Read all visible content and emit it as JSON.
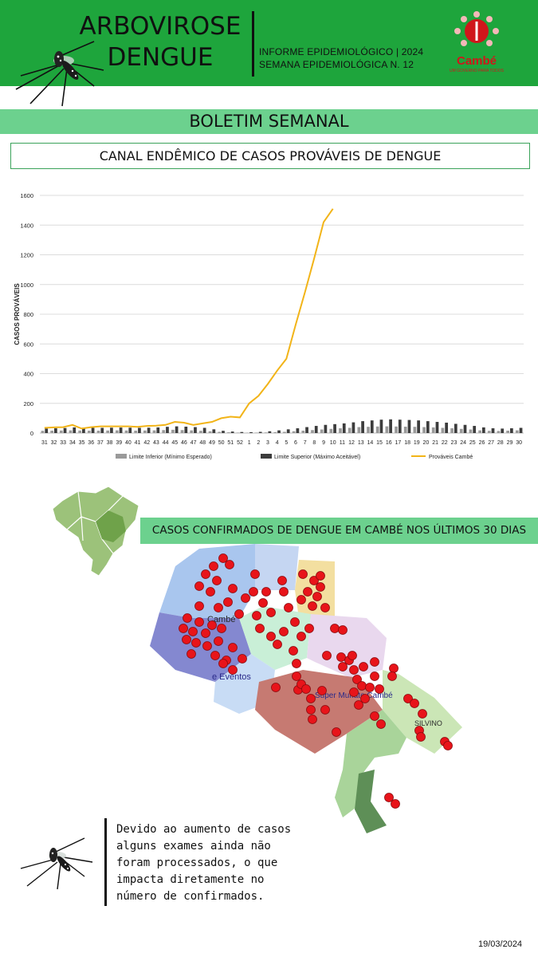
{
  "header": {
    "title_line1": "ARBOVIROSE",
    "title_line2": "DENGUE",
    "info_line1": "INFORME EPIDEMIOLÓGICO | 2024",
    "info_line2": "SEMANA EPIDEMIOLÓGICA  N. 12",
    "logo_text": "Cambé",
    "logo_subtext": "UM GOVERNO PARA TODOS"
  },
  "banner": "BOLETIM SEMANAL",
  "chart_title": "CANAL ENDÊMICO DE CASOS PROVÁVEIS DE DENGUE",
  "chart_data": {
    "type": "bar",
    "title": "",
    "xlabel": "",
    "ylabel": "CASOS PROVÁVEIS",
    "ylim": [
      0,
      1600
    ],
    "yticks": [
      0,
      200,
      400,
      600,
      800,
      1000,
      1200,
      1400,
      1600
    ],
    "grid": true,
    "legend_position": "bottom",
    "categories": [
      "31",
      "32",
      "33",
      "34",
      "35",
      "36",
      "37",
      "38",
      "39",
      "40",
      "41",
      "42",
      "43",
      "44",
      "45",
      "46",
      "47",
      "48",
      "49",
      "50",
      "51",
      "52",
      "1",
      "2",
      "3",
      "4",
      "5",
      "6",
      "7",
      "8",
      "9",
      "10",
      "11",
      "12",
      "13",
      "14",
      "15",
      "16",
      "17",
      "18",
      "19",
      "20",
      "21",
      "22",
      "23",
      "24",
      "25",
      "26",
      "27",
      "28",
      "29",
      "30"
    ],
    "series": [
      {
        "name": "Limite Inferior (Mínimo Esperado)",
        "type": "bar",
        "color": "#9a9a9a",
        "values": [
          15,
          16,
          17,
          18,
          17,
          16,
          16,
          17,
          18,
          17,
          16,
          17,
          18,
          20,
          22,
          20,
          18,
          15,
          12,
          8,
          5,
          3,
          2,
          3,
          4,
          6,
          8,
          12,
          16,
          20,
          24,
          28,
          32,
          35,
          40,
          42,
          44,
          45,
          44,
          43,
          42,
          40,
          38,
          35,
          32,
          28,
          24,
          18,
          15,
          14,
          16,
          18
        ]
      },
      {
        "name": "Limite Superior (Máximo Aceitável)",
        "type": "bar",
        "color": "#3c3c3c",
        "values": [
          30,
          32,
          34,
          38,
          36,
          35,
          35,
          36,
          37,
          36,
          35,
          36,
          38,
          42,
          45,
          43,
          40,
          35,
          25,
          15,
          10,
          7,
          6,
          8,
          12,
          18,
          25,
          32,
          40,
          48,
          55,
          60,
          65,
          72,
          80,
          85,
          90,
          92,
          90,
          88,
          85,
          80,
          75,
          70,
          62,
          55,
          48,
          38,
          32,
          30,
          32,
          35
        ]
      },
      {
        "name": "Prováveis Cambé",
        "type": "line",
        "color": "#f2b418",
        "values": [
          35,
          38,
          40,
          55,
          30,
          40,
          45,
          45,
          45,
          45,
          42,
          48,
          50,
          55,
          75,
          70,
          55,
          65,
          75,
          100,
          110,
          105,
          200,
          250,
          330,
          420,
          500,
          730,
          950,
          1180,
          1420,
          1510,
          null,
          null,
          null,
          null,
          null,
          null,
          null,
          null,
          null,
          null,
          null,
          null,
          null,
          null,
          null,
          null,
          null,
          null,
          null,
          null
        ]
      }
    ]
  },
  "map_title": "CASOS CONFIRMADOS DE DENGUE EM CAMBÉ NOS ÚLTIMOS 30 DIAS",
  "map_labels": {
    "label1": "Cambé",
    "label2": "e Eventos",
    "label3": "Super Muffato Cambé",
    "label4": "SILVINO"
  },
  "note": "Devido ao aumento de casos alguns exames ainda não foram processados, o que impacta diretamente no número de confirmados.",
  "date": "19/03/2024",
  "colors": {
    "header_green": "#1ea53c",
    "banner_green": "#6cd18e",
    "case_marker": "#e8141a",
    "line_yellow": "#f2b418"
  }
}
